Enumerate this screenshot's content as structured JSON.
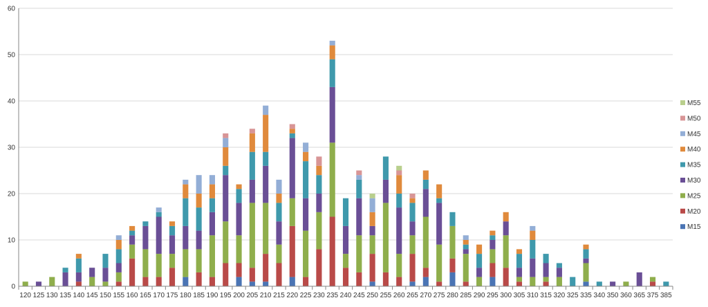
{
  "chart_data": {
    "type": "bar",
    "stacked": true,
    "title": "",
    "xlabel": "",
    "ylabel": "",
    "ylim": [
      0,
      60
    ],
    "ytick_step": 10,
    "grid": true,
    "legend_position": "right",
    "categories": [
      "120",
      "125",
      "130",
      "135",
      "140",
      "145",
      "150",
      "155",
      "160",
      "165",
      "170",
      "175",
      "180",
      "185",
      "190",
      "195",
      "200",
      "205",
      "210",
      "215",
      "220",
      "225",
      "230",
      "235",
      "240",
      "245",
      "250",
      "255",
      "260",
      "265",
      "270",
      "275",
      "280",
      "285",
      "290",
      "295",
      "300",
      "305",
      "310",
      "315",
      "320",
      "325",
      "335",
      "340",
      "350",
      "360",
      "365",
      "375",
      "385"
    ],
    "series": [
      {
        "name": "M15",
        "color": "#4a74b4",
        "values": [
          0,
          0,
          0,
          0,
          0,
          0,
          0,
          0,
          0,
          0,
          0,
          0,
          2,
          0,
          0,
          0,
          2,
          1,
          1,
          0,
          2,
          0,
          0,
          0,
          0,
          0,
          1,
          0,
          0,
          1,
          2,
          0,
          3,
          0,
          0,
          2,
          0,
          0,
          0,
          0,
          0,
          0,
          1,
          0,
          0,
          0,
          0,
          0,
          0
        ]
      },
      {
        "name": "M20",
        "color": "#b94a48",
        "values": [
          0,
          0,
          0,
          0,
          1,
          0,
          0,
          1,
          6,
          2,
          2,
          4,
          0,
          3,
          2,
          5,
          3,
          3,
          6,
          5,
          11,
          2,
          8,
          15,
          4,
          3,
          6,
          3,
          2,
          6,
          2,
          1,
          3,
          1,
          0,
          3,
          4,
          1,
          0,
          1,
          0,
          0,
          0,
          0,
          0,
          0,
          0,
          1,
          0
        ]
      },
      {
        "name": "M25",
        "color": "#8fae4c",
        "values": [
          1,
          0,
          2,
          0,
          0,
          2,
          1,
          2,
          3,
          6,
          5,
          3,
          6,
          5,
          9,
          9,
          6,
          14,
          11,
          4,
          6,
          10,
          8,
          16,
          3,
          8,
          4,
          15,
          5,
          4,
          11,
          8,
          7,
          6,
          2,
          3,
          7,
          1,
          2,
          1,
          2,
          0,
          4,
          0,
          0,
          1,
          0,
          1,
          0
        ]
      },
      {
        "name": "M30",
        "color": "#6a4f96",
        "values": [
          0,
          1,
          0,
          3,
          2,
          2,
          3,
          2,
          2,
          5,
          8,
          4,
          5,
          4,
          5,
          10,
          7,
          5,
          8,
          5,
          13,
          7,
          4,
          12,
          6,
          8,
          2,
          5,
          10,
          3,
          6,
          9,
          0,
          1,
          2,
          2,
          3,
          2,
          4,
          3,
          2,
          0,
          1,
          0,
          1,
          0,
          3,
          0,
          0
        ]
      },
      {
        "name": "M35",
        "color": "#3f99ac",
        "values": [
          0,
          0,
          0,
          1,
          3,
          0,
          3,
          3,
          1,
          1,
          1,
          2,
          6,
          5,
          3,
          2,
          3,
          6,
          3,
          4,
          1,
          8,
          4,
          6,
          6,
          4,
          0,
          5,
          3,
          4,
          2,
          1,
          3,
          1,
          3,
          1,
          0,
          3,
          4,
          2,
          1,
          2,
          2,
          1,
          0,
          0,
          0,
          0,
          1
        ]
      },
      {
        "name": "M40",
        "color": "#e08a3c",
        "values": [
          0,
          0,
          0,
          0,
          1,
          0,
          0,
          2,
          1,
          0,
          0,
          1,
          3,
          3,
          3,
          4,
          1,
          4,
          8,
          2,
          1,
          2,
          2,
          3,
          0,
          0,
          3,
          0,
          4,
          1,
          2,
          3,
          0,
          1,
          2,
          1,
          2,
          1,
          2,
          0,
          0,
          0,
          1,
          0,
          0,
          0,
          0,
          0,
          0
        ]
      },
      {
        "name": "M45",
        "color": "#93aed6",
        "values": [
          0,
          0,
          0,
          0,
          0,
          0,
          0,
          1,
          0,
          0,
          1,
          0,
          1,
          4,
          2,
          2,
          0,
          0,
          2,
          3,
          0,
          2,
          0,
          1,
          0,
          1,
          3,
          0,
          0,
          0,
          0,
          0,
          0,
          1,
          0,
          0,
          0,
          0,
          1,
          0,
          0,
          0,
          0,
          0,
          0,
          0,
          0,
          0,
          0
        ]
      },
      {
        "name": "M50",
        "color": "#d89596",
        "values": [
          0,
          0,
          0,
          0,
          0,
          0,
          0,
          0,
          0,
          0,
          0,
          0,
          0,
          0,
          0,
          1,
          0,
          1,
          0,
          0,
          1,
          0,
          2,
          0,
          0,
          1,
          0,
          0,
          1,
          1,
          0,
          0,
          0,
          0,
          0,
          0,
          0,
          0,
          0,
          0,
          0,
          0,
          0,
          0,
          0,
          0,
          0,
          0,
          0
        ]
      },
      {
        "name": "M55",
        "color": "#b9cf8d",
        "values": [
          0,
          0,
          0,
          0,
          0,
          0,
          0,
          0,
          0,
          0,
          0,
          0,
          0,
          0,
          0,
          0,
          0,
          0,
          0,
          0,
          0,
          0,
          0,
          0,
          0,
          0,
          1,
          0,
          1,
          0,
          0,
          0,
          0,
          0,
          0,
          0,
          0,
          0,
          0,
          0,
          0,
          0,
          0,
          0,
          0,
          0,
          0,
          0,
          0
        ]
      }
    ]
  }
}
